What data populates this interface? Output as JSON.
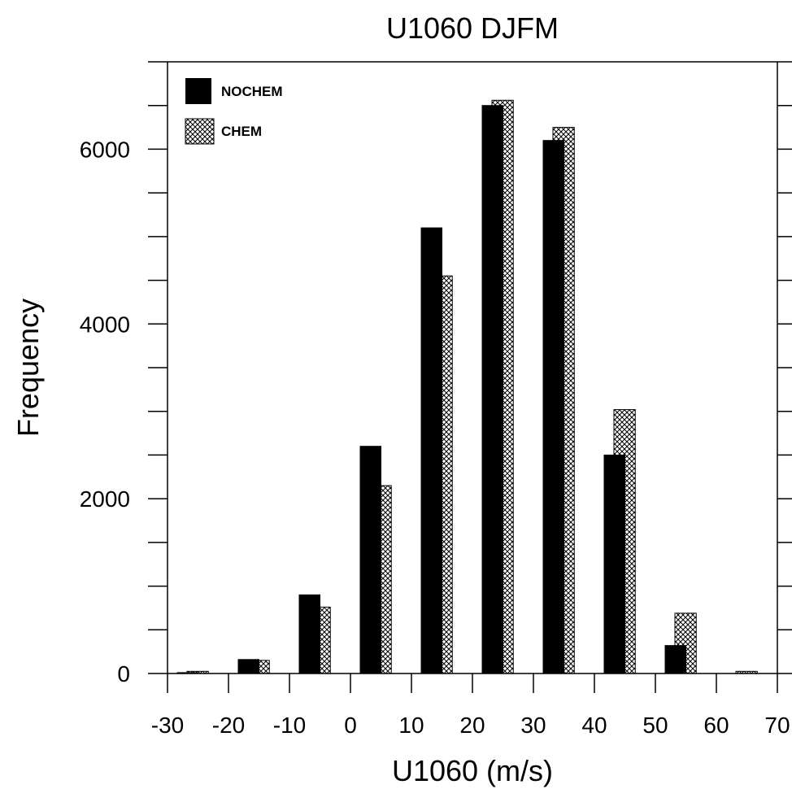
{
  "chart_data": {
    "type": "bar",
    "title": "U1060 DJFM",
    "xlabel": "U1060 (m/s)",
    "ylabel": "Frequency",
    "xlim": [
      -30,
      70
    ],
    "ylim": [
      0,
      7000
    ],
    "x_ticks": [
      "-30",
      "-20",
      "-10",
      "0",
      "10",
      "20",
      "30",
      "40",
      "50",
      "60",
      "70"
    ],
    "y_ticks": [
      "0",
      "2000",
      "4000",
      "6000"
    ],
    "bin_edges_start": [
      -30,
      -20,
      -10,
      0,
      10,
      20,
      30,
      40,
      50,
      60
    ],
    "bin_width": 10,
    "grid": false,
    "legend_position": "top-left",
    "series": [
      {
        "name": "NOCHEM",
        "pattern": "solid",
        "color": "#000000",
        "values": [
          10,
          160,
          900,
          2600,
          5100,
          6500,
          6100,
          2500,
          320,
          0
        ]
      },
      {
        "name": "CHEM",
        "pattern": "crosshatch",
        "color": "#000000",
        "values": [
          25,
          150,
          760,
          2150,
          4550,
          6560,
          6250,
          3020,
          690,
          25
        ]
      }
    ]
  }
}
